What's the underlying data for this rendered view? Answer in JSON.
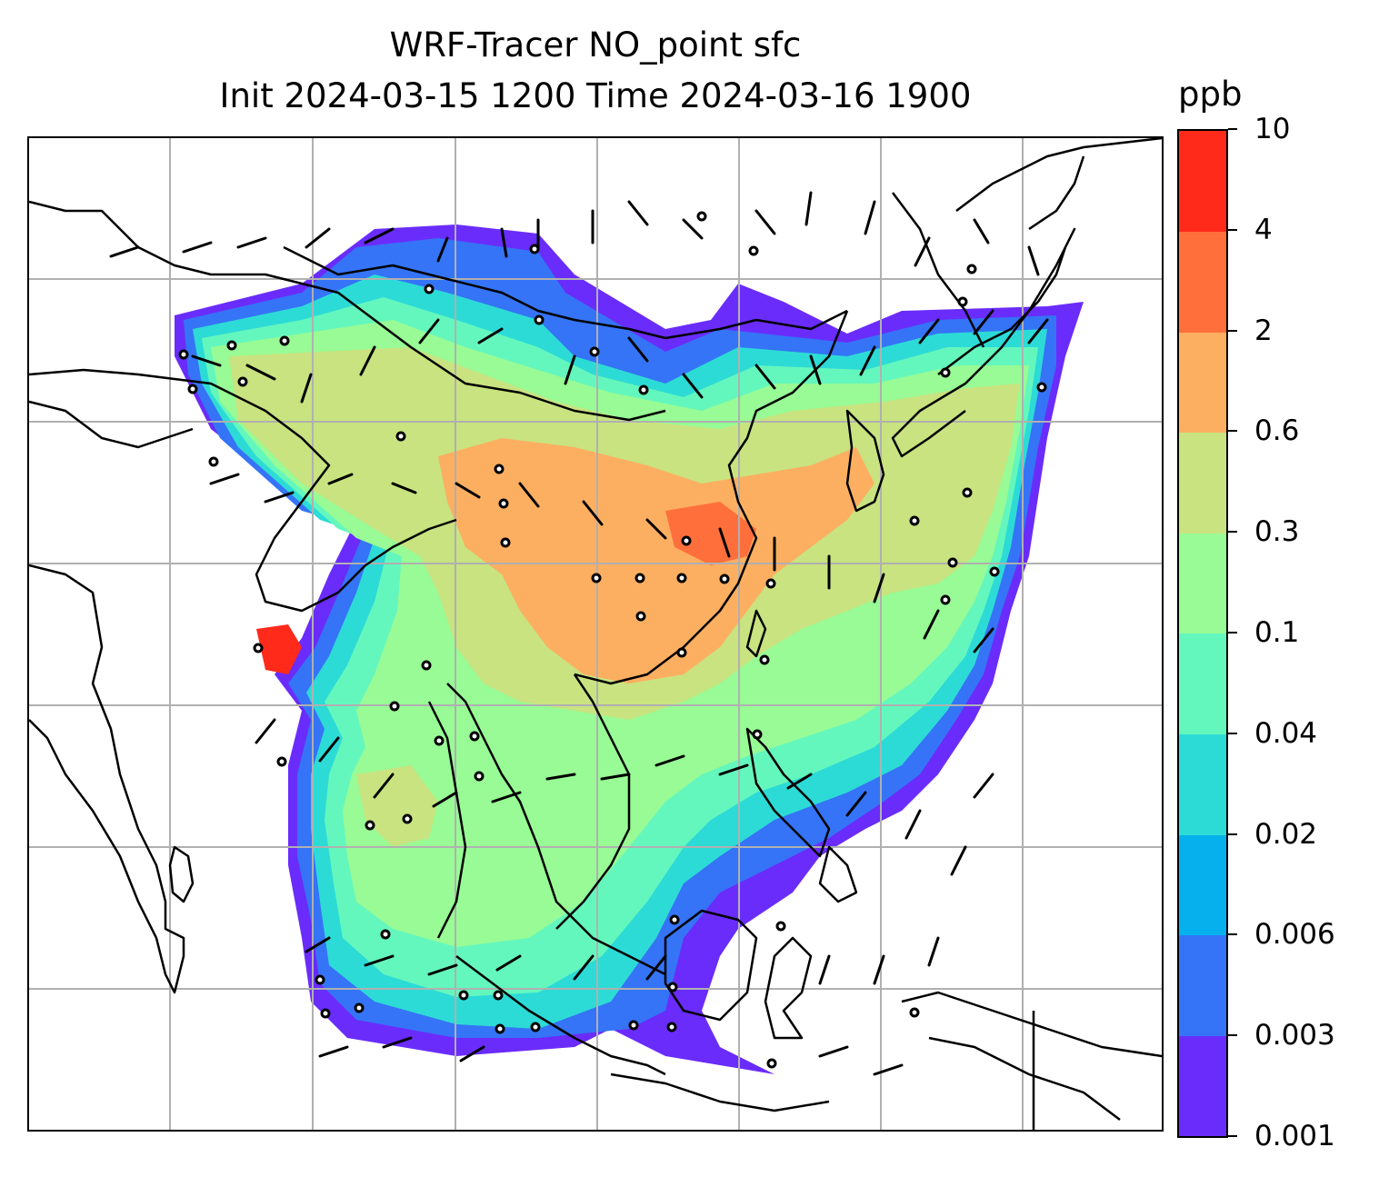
{
  "title": {
    "line1": "WRF-Tracer NO_point sfc",
    "line2": "Init 2024-03-15 1200 Time 2024-03-16 1900"
  },
  "colorbar": {
    "unit": "ppb",
    "tick_labels": [
      "0.001",
      "0.003",
      "0.006",
      "0.02",
      "0.04",
      "0.1",
      "0.3",
      "0.6",
      "2",
      "4",
      "10"
    ],
    "band_colors": [
      "#6a2cfb",
      "#3574f6",
      "#06b0ec",
      "#2ddbd6",
      "#64f7bd",
      "#98fb95",
      "#c8e380",
      "#fdaf61",
      "#ff6f3c",
      "#ff2a1a"
    ]
  },
  "map": {
    "field": "NO_point",
    "level": "sfc",
    "gridlines": "on",
    "coastlines": "on",
    "wind_barbs": "on",
    "station_markers": "on"
  },
  "colors": {
    "gridline": "#b0b0b0",
    "coastline": "#000000",
    "background": "#ffffff"
  }
}
